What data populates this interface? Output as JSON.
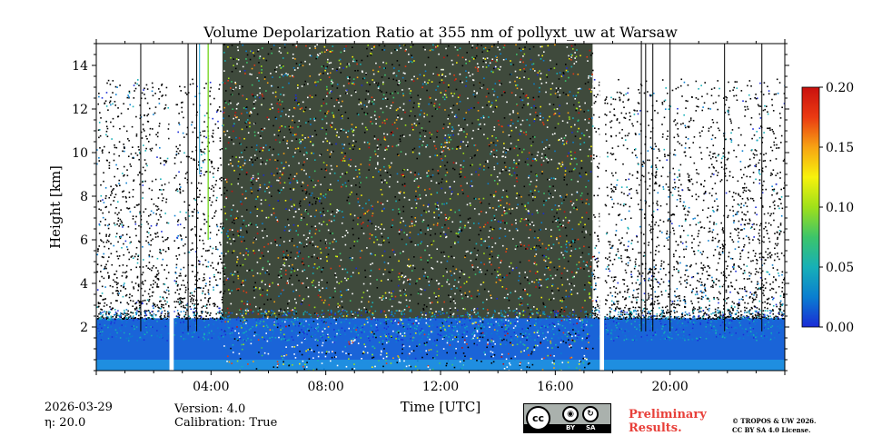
{
  "chart_data": {
    "type": "heatmap",
    "title": "Volume Depolarization Ratio at 355 nm of pollyxt_uw at Warsaw",
    "xlabel": "Time [UTC]",
    "ylabel": "Height [km]",
    "xlim_hours": [
      0,
      24
    ],
    "ylim_km": [
      0,
      15
    ],
    "x_ticks": [
      {
        "hour": 4,
        "label": "04:00"
      },
      {
        "hour": 8,
        "label": "08:00"
      },
      {
        "hour": 12,
        "label": "12:00"
      },
      {
        "hour": 16,
        "label": "16:00"
      },
      {
        "hour": 20,
        "label": "20:00"
      }
    ],
    "y_ticks": [
      {
        "km": 2,
        "label": "2"
      },
      {
        "km": 4,
        "label": "4"
      },
      {
        "km": 6,
        "label": "6"
      },
      {
        "km": 8,
        "label": "8"
      },
      {
        "km": 10,
        "label": "10"
      },
      {
        "km": 12,
        "label": "12"
      },
      {
        "km": 14,
        "label": "14"
      }
    ],
    "colorbar": {
      "min": 0.0,
      "max": 0.2,
      "ticks": [
        {
          "value": 0.0,
          "label": "0.00"
        },
        {
          "value": 0.05,
          "label": "0.05"
        },
        {
          "value": 0.1,
          "label": "0.10"
        },
        {
          "value": 0.15,
          "label": "0.15"
        },
        {
          "value": 0.2,
          "label": "0.20"
        }
      ],
      "colors": [
        "#1a2bd6",
        "#0a7ed0",
        "#17b0b7",
        "#3cc56a",
        "#9fe01a",
        "#f7f20c",
        "#f7a313",
        "#ea3a12",
        "#c9100e"
      ]
    },
    "data_gaps_hours": [
      [
        2.55,
        2.7
      ],
      [
        17.55,
        17.7
      ]
    ],
    "noisy_daytime_hours": [
      4.4,
      17.3
    ],
    "boundary_layer_top_km": 2.4,
    "background_color": "#3f4a3c",
    "aerosol_color": "#1a64d8"
  },
  "footer": {
    "date": "2026-03-29",
    "eta": "η: 20.0",
    "version": "Version: 4.0",
    "calibration": "Calibration: True",
    "cc_abbr": "cc",
    "cc_by": "BY",
    "cc_sa": "SA",
    "preliminary_line1": "Preliminary",
    "preliminary_line2": "Results.",
    "license_line1": "© TROPOS & UW 2026.",
    "license_line2": "CC BY SA 4.0 License."
  }
}
